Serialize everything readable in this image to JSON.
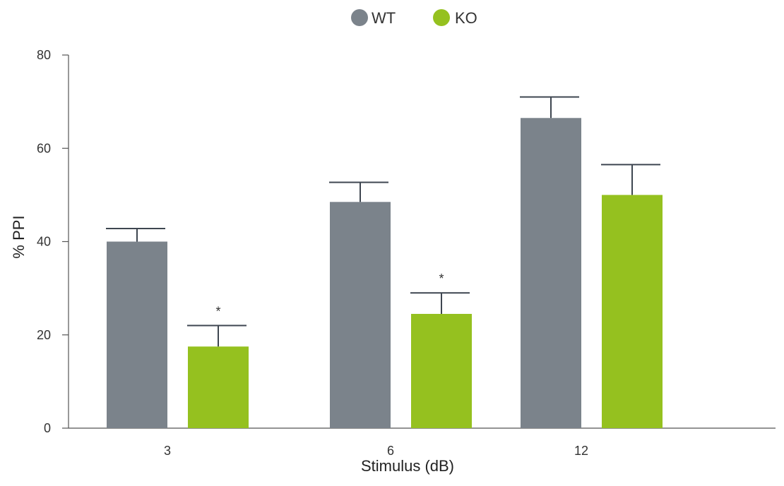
{
  "chart_data": {
    "type": "bar",
    "categories": [
      "3",
      "6",
      "12"
    ],
    "series": [
      {
        "name": "WT",
        "color": "#7b838b",
        "values": [
          40,
          48.5,
          66.5
        ],
        "errors": [
          2.8,
          4.2,
          4.5
        ],
        "annotations": [
          "",
          "",
          ""
        ]
      },
      {
        "name": "KO",
        "color": "#95c11f",
        "values": [
          17.5,
          24.5,
          50
        ],
        "errors": [
          4.5,
          4.5,
          6.5
        ],
        "annotations": [
          "*",
          "*",
          ""
        ]
      }
    ],
    "xlabel": "Stimulus (dB)",
    "ylabel": "% PPI",
    "ylim": [
      0,
      80
    ],
    "yticks": [
      "0",
      "20",
      "40",
      "60",
      "80"
    ],
    "grid": false,
    "legend_position": "top-center"
  }
}
